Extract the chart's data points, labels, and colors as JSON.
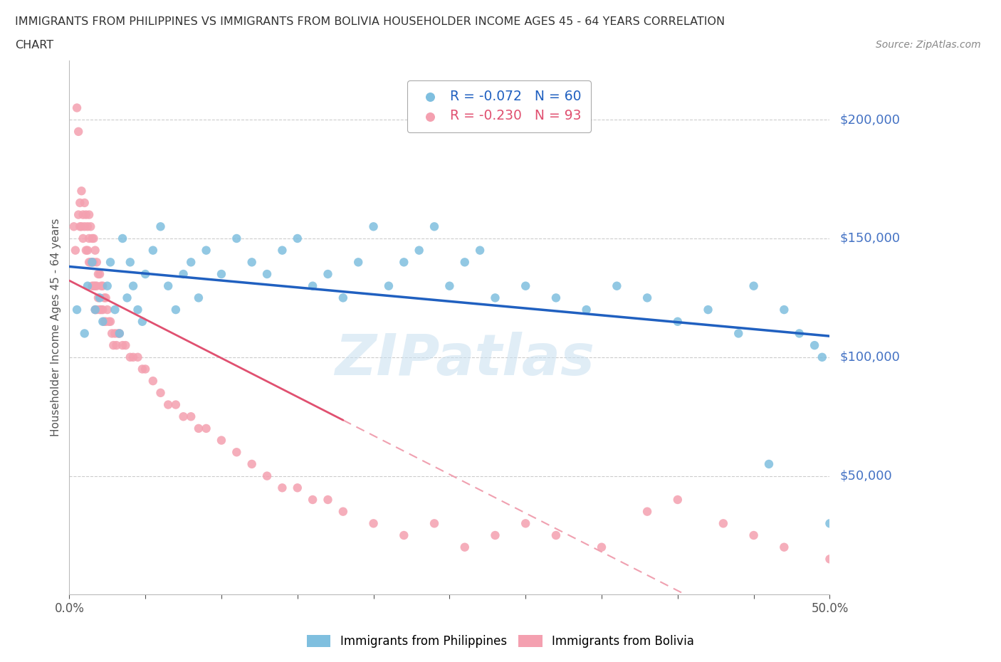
{
  "title_line1": "IMMIGRANTS FROM PHILIPPINES VS IMMIGRANTS FROM BOLIVIA HOUSEHOLDER INCOME AGES 45 - 64 YEARS CORRELATION",
  "title_line2": "CHART",
  "source": "Source: ZipAtlas.com",
  "ylabel": "Householder Income Ages 45 - 64 years",
  "xlim": [
    0.0,
    0.5
  ],
  "ylim": [
    0,
    225000
  ],
  "xticks": [
    0.0,
    0.05,
    0.1,
    0.15,
    0.2,
    0.25,
    0.3,
    0.35,
    0.4,
    0.45,
    0.5
  ],
  "philippines_color": "#7fbfdf",
  "bolivia_color": "#f4a0b0",
  "philippines_R": -0.072,
  "philippines_N": 60,
  "bolivia_R": -0.23,
  "bolivia_N": 93,
  "right_label_color": "#4472c4",
  "watermark": "ZIPatlas",
  "background_color": "#ffffff",
  "grid_color": "#cccccc",
  "philippines_scatter_x": [
    0.005,
    0.01,
    0.012,
    0.015,
    0.017,
    0.02,
    0.022,
    0.025,
    0.027,
    0.03,
    0.033,
    0.035,
    0.038,
    0.04,
    0.042,
    0.045,
    0.048,
    0.05,
    0.055,
    0.06,
    0.065,
    0.07,
    0.075,
    0.08,
    0.085,
    0.09,
    0.1,
    0.11,
    0.12,
    0.13,
    0.14,
    0.15,
    0.16,
    0.17,
    0.18,
    0.19,
    0.2,
    0.21,
    0.22,
    0.23,
    0.24,
    0.25,
    0.26,
    0.27,
    0.28,
    0.3,
    0.32,
    0.34,
    0.36,
    0.38,
    0.4,
    0.42,
    0.44,
    0.45,
    0.46,
    0.47,
    0.48,
    0.49,
    0.495,
    0.5
  ],
  "philippines_scatter_y": [
    120000,
    110000,
    130000,
    140000,
    120000,
    125000,
    115000,
    130000,
    140000,
    120000,
    110000,
    150000,
    125000,
    140000,
    130000,
    120000,
    115000,
    135000,
    145000,
    155000,
    130000,
    120000,
    135000,
    140000,
    125000,
    145000,
    135000,
    150000,
    140000,
    135000,
    145000,
    150000,
    130000,
    135000,
    125000,
    140000,
    155000,
    130000,
    140000,
    145000,
    155000,
    130000,
    140000,
    145000,
    125000,
    130000,
    125000,
    120000,
    130000,
    125000,
    115000,
    120000,
    110000,
    130000,
    55000,
    120000,
    110000,
    105000,
    100000,
    30000
  ],
  "bolivia_scatter_x": [
    0.003,
    0.004,
    0.005,
    0.006,
    0.006,
    0.007,
    0.007,
    0.008,
    0.008,
    0.009,
    0.009,
    0.01,
    0.01,
    0.011,
    0.011,
    0.012,
    0.012,
    0.013,
    0.013,
    0.013,
    0.014,
    0.014,
    0.015,
    0.015,
    0.015,
    0.016,
    0.016,
    0.016,
    0.017,
    0.017,
    0.017,
    0.018,
    0.018,
    0.018,
    0.019,
    0.019,
    0.02,
    0.02,
    0.021,
    0.021,
    0.022,
    0.022,
    0.023,
    0.023,
    0.024,
    0.024,
    0.025,
    0.026,
    0.027,
    0.028,
    0.029,
    0.03,
    0.031,
    0.032,
    0.033,
    0.035,
    0.037,
    0.04,
    0.042,
    0.045,
    0.048,
    0.05,
    0.055,
    0.06,
    0.065,
    0.07,
    0.075,
    0.08,
    0.085,
    0.09,
    0.1,
    0.11,
    0.12,
    0.13,
    0.14,
    0.15,
    0.16,
    0.17,
    0.18,
    0.2,
    0.22,
    0.24,
    0.26,
    0.28,
    0.3,
    0.32,
    0.35,
    0.38,
    0.4,
    0.43,
    0.45,
    0.47,
    0.5
  ],
  "bolivia_scatter_y": [
    155000,
    145000,
    205000,
    195000,
    160000,
    165000,
    155000,
    170000,
    155000,
    160000,
    150000,
    165000,
    155000,
    160000,
    145000,
    155000,
    145000,
    160000,
    150000,
    140000,
    155000,
    140000,
    150000,
    140000,
    130000,
    150000,
    140000,
    130000,
    145000,
    130000,
    120000,
    140000,
    130000,
    120000,
    135000,
    125000,
    135000,
    120000,
    130000,
    120000,
    130000,
    120000,
    125000,
    115000,
    125000,
    115000,
    120000,
    115000,
    115000,
    110000,
    105000,
    110000,
    105000,
    110000,
    110000,
    105000,
    105000,
    100000,
    100000,
    100000,
    95000,
    95000,
    90000,
    85000,
    80000,
    80000,
    75000,
    75000,
    70000,
    70000,
    65000,
    60000,
    55000,
    50000,
    45000,
    45000,
    40000,
    40000,
    35000,
    30000,
    25000,
    30000,
    20000,
    25000,
    30000,
    25000,
    20000,
    35000,
    40000,
    30000,
    25000,
    20000,
    15000
  ]
}
